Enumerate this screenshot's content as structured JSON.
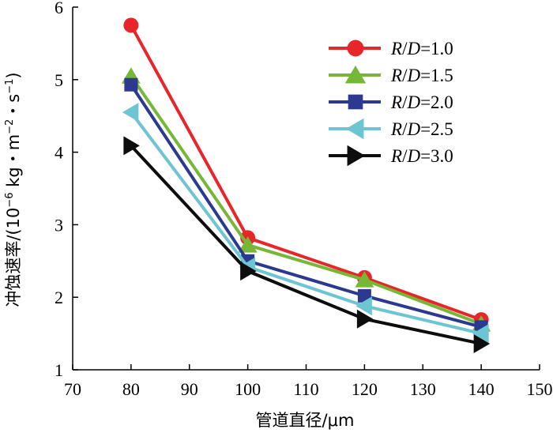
{
  "chart_data": {
    "type": "line",
    "title": "",
    "xlabel": "管道直径/μm",
    "ylabel": "冲蚀速率/(10⁻⁶ kg・m⁻²・s⁻¹)",
    "ylabel_parts": {
      "lead": "冲蚀速率/(10",
      "exp1": "−6",
      "mid1": " kg・m",
      "exp2": "−2",
      "mid2": "・s",
      "exp3": "−1",
      "tail": ")"
    },
    "xlim": [
      70,
      150
    ],
    "ylim": [
      1,
      6
    ],
    "xticks": [
      70,
      80,
      90,
      100,
      110,
      120,
      130,
      140,
      150
    ],
    "yticks": [
      1,
      2,
      3,
      4,
      5,
      6
    ],
    "x": [
      80,
      100,
      120,
      140
    ],
    "legend_position": "top-right",
    "series": [
      {
        "name": "R/D=1.0",
        "var": "R",
        "sep": "/",
        "var2": "D",
        "value_text": "=1.0",
        "color": "#e8262a",
        "marker": "circle",
        "values": [
          5.75,
          2.82,
          2.27,
          1.69
        ]
      },
      {
        "name": "R/D=1.5",
        "var": "R",
        "sep": "/",
        "var2": "D",
        "value_text": "=1.5",
        "color": "#77b737",
        "marker": "triangle-up",
        "values": [
          5.05,
          2.72,
          2.24,
          1.63
        ]
      },
      {
        "name": "R/D=2.0",
        "var": "R",
        "sep": "/",
        "var2": "D",
        "value_text": "=2.0",
        "color": "#2b3990",
        "marker": "square",
        "values": [
          4.93,
          2.5,
          2.02,
          1.59
        ]
      },
      {
        "name": "R/D=2.5",
        "var": "R",
        "sep": "/",
        "var2": "D",
        "value_text": "=2.5",
        "color": "#6cc5d1",
        "marker": "triangle-left",
        "values": [
          4.55,
          2.42,
          1.88,
          1.5
        ]
      },
      {
        "name": "R/D=3.0",
        "var": "R",
        "sep": "/",
        "var2": "D",
        "value_text": "=3.0",
        "color": "#0d0d0d",
        "marker": "triangle-right",
        "values": [
          4.09,
          2.36,
          1.7,
          1.36
        ]
      }
    ]
  }
}
